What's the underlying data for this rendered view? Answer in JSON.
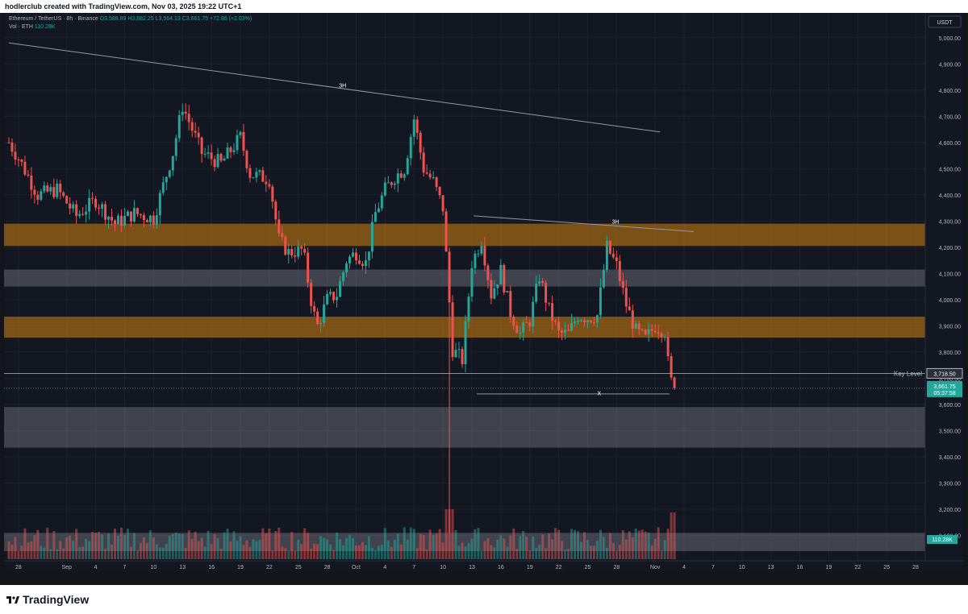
{
  "header": {
    "created_by": "hodlerclub created with TradingView.com, Nov 03, 2025 19:22 UTC+1"
  },
  "legend": {
    "symbol": "Ethereum / TetherUS · 8h · Binance",
    "open": "O3,588.89",
    "high": "H3,682.25",
    "low": "L3,564.13",
    "close": "C3,661.75",
    "change": "+72.86 (+2.03%)",
    "volume_label": "Vol · ETH",
    "volume_value": "110.28K"
  },
  "currency_button": "USDT",
  "brand": "TradingView",
  "colors": {
    "up": "#26a69a",
    "down": "#ef5350",
    "zone_orange": "#d4820f",
    "zone_gray": "#787b86",
    "background": "#131722"
  },
  "chart_data": {
    "type": "candlestick",
    "ylim": [
      3040,
      5070
    ],
    "y_ticks": [
      "5,000.00",
      "4,900.00",
      "4,800.00",
      "4,700.00",
      "4,600.00",
      "4,500.00",
      "4,400.00",
      "4,300.00",
      "4,200.00",
      "4,100.00",
      "4,000.00",
      "3,900.00",
      "3,800.00",
      "3,700.00",
      "3,600.00",
      "3,500.00",
      "3,400.00",
      "3,300.00",
      "3,200.00",
      "3,100.00"
    ],
    "x_ticks": [
      "28",
      "Sep",
      "4",
      "7",
      "10",
      "13",
      "16",
      "19",
      "22",
      "25",
      "28",
      "Oct",
      "4",
      "7",
      "10",
      "13",
      "16",
      "19",
      "22",
      "25",
      "28",
      "Nov",
      "4",
      "7",
      "10",
      "13",
      "16",
      "19",
      "22",
      "25",
      "28"
    ],
    "x_tick_days": [
      -4,
      1,
      4,
      7,
      10,
      13,
      16,
      19,
      22,
      25,
      28,
      31,
      34,
      37,
      40,
      43,
      46,
      49,
      52,
      55,
      58,
      62,
      65,
      68,
      71,
      74,
      77,
      80,
      83,
      86,
      89
    ],
    "zones": [
      {
        "kind": "orange",
        "from": 4205,
        "to": 4290
      },
      {
        "kind": "gray",
        "from": 4050,
        "to": 4115
      },
      {
        "kind": "orange",
        "from": 3855,
        "to": 3935
      },
      {
        "kind": "gray",
        "from": 3435,
        "to": 3590
      },
      {
        "kind": "gray",
        "from": 3040,
        "to": 3110
      }
    ],
    "key_level": {
      "label": "Key Level",
      "value": "3,718.50",
      "price": 3718.5
    },
    "last_price": {
      "value": "3,661.75",
      "countdown": "05:37:58",
      "price": 3661.75
    },
    "annotations": [
      {
        "text": "3H",
        "day": 29.6,
        "price": 4810
      },
      {
        "text": "3H",
        "day": 57.9,
        "price": 4290
      },
      {
        "text": "X",
        "day": 56.2,
        "price": 3635
      }
    ],
    "trendlines": [
      {
        "from": [
          -5,
          4980
        ],
        "to": [
          62.5,
          4640
        ]
      },
      {
        "from": [
          43.2,
          4320
        ],
        "to": [
          66,
          4260
        ]
      },
      {
        "from": [
          43.5,
          3640
        ],
        "to": [
          63.5,
          3640
        ]
      }
    ],
    "volume_label": "110.28K",
    "ohlc_anchor_points": [
      {
        "day": -5,
        "close": 4600
      },
      {
        "day": -4,
        "close": 4540
      },
      {
        "day": -3,
        "close": 4470
      },
      {
        "day": -2,
        "close": 4400
      },
      {
        "day": 0,
        "close": 4420
      },
      {
        "day": 2,
        "close": 4320
      },
      {
        "day": 4,
        "close": 4380
      },
      {
        "day": 6,
        "close": 4290
      },
      {
        "day": 8,
        "close": 4330
      },
      {
        "day": 10,
        "close": 4310
      },
      {
        "day": 12,
        "close": 4560
      },
      {
        "day": 13,
        "close": 4740
      },
      {
        "day": 15,
        "close": 4560
      },
      {
        "day": 17,
        "close": 4520
      },
      {
        "day": 19,
        "close": 4620
      },
      {
        "day": 20,
        "close": 4480
      },
      {
        "day": 22,
        "close": 4460
      },
      {
        "day": 23,
        "close": 4230
      },
      {
        "day": 24,
        "close": 4180
      },
      {
        "day": 25.5,
        "close": 4190
      },
      {
        "day": 26.5,
        "close": 3960
      },
      {
        "day": 27,
        "close": 3900
      },
      {
        "day": 28,
        "close": 4000
      },
      {
        "day": 29,
        "close": 4020
      },
      {
        "day": 30,
        "close": 4150
      },
      {
        "day": 31,
        "close": 4180
      },
      {
        "day": 32,
        "close": 4140
      },
      {
        "day": 33,
        "close": 4330
      },
      {
        "day": 34,
        "close": 4420
      },
      {
        "day": 35,
        "close": 4470
      },
      {
        "day": 36,
        "close": 4500
      },
      {
        "day": 37,
        "close": 4690
      },
      {
        "day": 38,
        "close": 4500
      },
      {
        "day": 39,
        "close": 4450
      },
      {
        "day": 40,
        "close": 4350
      },
      {
        "day": 41,
        "close": 3810
      },
      {
        "day": 42,
        "close": 3770
      },
      {
        "day": 43,
        "close": 4140
      },
      {
        "day": 44,
        "close": 4230
      },
      {
        "day": 45,
        "close": 4020
      },
      {
        "day": 46,
        "close": 4110
      },
      {
        "day": 47,
        "close": 3950
      },
      {
        "day": 48,
        "close": 3870
      },
      {
        "day": 49,
        "close": 3920
      },
      {
        "day": 50,
        "close": 4090
      },
      {
        "day": 51,
        "close": 3960
      },
      {
        "day": 52,
        "close": 3870
      },
      {
        "day": 53,
        "close": 3870
      },
      {
        "day": 54,
        "close": 3940
      },
      {
        "day": 55,
        "close": 3930
      },
      {
        "day": 56,
        "close": 3940
      },
      {
        "day": 57,
        "close": 4200
      },
      {
        "day": 58,
        "close": 4130
      },
      {
        "day": 59,
        "close": 3980
      },
      {
        "day": 60,
        "close": 3880
      },
      {
        "day": 61,
        "close": 3850
      },
      {
        "day": 62,
        "close": 3900
      },
      {
        "day": 63,
        "close": 3880
      },
      {
        "day": 63.5,
        "close": 3700
      },
      {
        "day": 64,
        "close": 3661.75
      }
    ]
  }
}
